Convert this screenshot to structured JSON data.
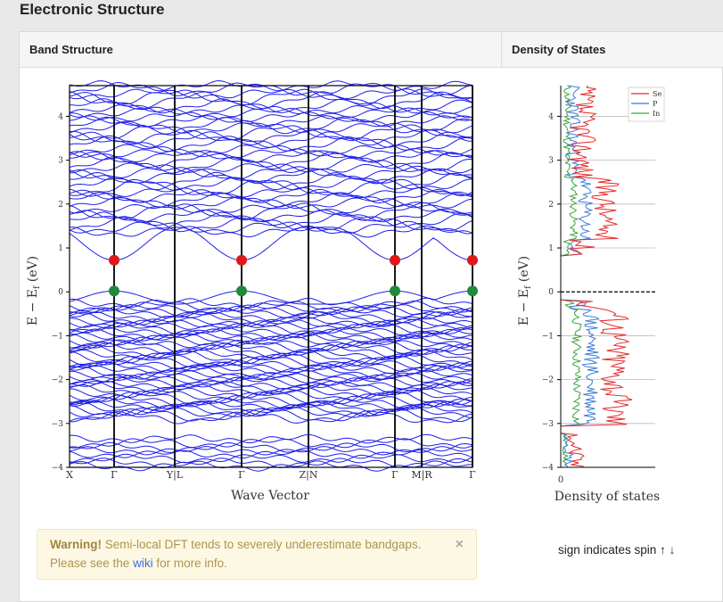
{
  "section_title": "Electronic Structure",
  "band_panel": {
    "header": "Band Structure",
    "xlabel": "Wave Vector",
    "ylabel": "E − E",
    "ylabel_sub": "f",
    "ylabel_unit": "(eV)",
    "y_ticks": [
      "4",
      "3",
      "2",
      "1",
      "0",
      "−1",
      "−2",
      "−3",
      "−4"
    ],
    "k_labels": [
      "X",
      "Γ",
      "Y|L",
      "Γ",
      "Z|N",
      "Γ",
      "M|R",
      "Γ"
    ]
  },
  "dos_panel": {
    "header": "Density of States",
    "xlabel": "Density of states",
    "ylabel": "E − E",
    "ylabel_sub": "f",
    "ylabel_unit": "(eV)",
    "x_tick": "0",
    "y_ticks": [
      "4",
      "3",
      "2",
      "1",
      "0",
      "−1",
      "−2",
      "−3",
      "−4"
    ],
    "legend": [
      {
        "name": "Se",
        "color": "#e22b2b"
      },
      {
        "name": "P",
        "color": "#3b7bd5"
      },
      {
        "name": "In",
        "color": "#3ca33c"
      }
    ]
  },
  "colors": {
    "band_line": "#1f1fe8",
    "cbm_marker": "#e01818",
    "vbm_marker": "#1f8a3a"
  },
  "warning": {
    "strong": "Warning!",
    "text": "Semi-local DFT tends to severely underestimate bandgaps.",
    "text2_pre": "Please see the",
    "link": "wiki",
    "text2_post": "for more info.",
    "close": "×"
  },
  "spin_note": "sign indicates spin ↑ ↓"
}
